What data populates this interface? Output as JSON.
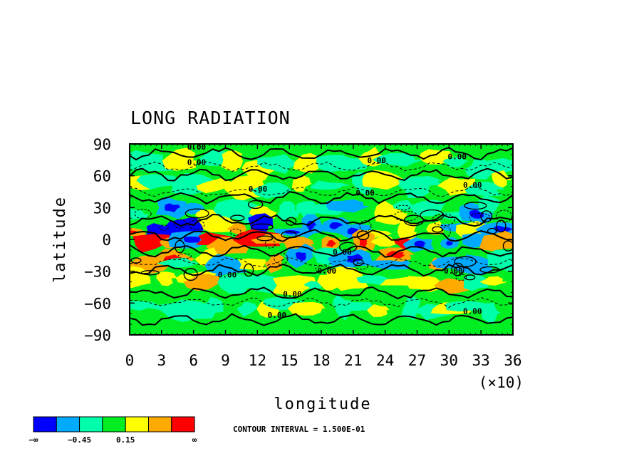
{
  "chart_data": {
    "type": "heatmap",
    "title": "LONG RADIATION",
    "xlabel": "longitude",
    "ylabel": "latitude",
    "x_multiplier": "(×10)",
    "xlim": [
      0,
      36
    ],
    "ylim": [
      -90,
      90
    ],
    "x_ticks": [
      "0",
      "3",
      "6",
      "9",
      "12",
      "15",
      "18",
      "21",
      "24",
      "27",
      "30",
      "33",
      "36"
    ],
    "y_ticks": [
      "90",
      "60",
      "30",
      "0",
      "−30",
      "−60",
      "−90"
    ],
    "contour_interval_text": "CONTOUR INTERVAL = 1.500E-01",
    "contour_level_labels": [
      "0.00",
      "0.00",
      "0.00",
      "0.00",
      "0.00",
      "0.00",
      "0.00",
      "0.00",
      "0.00",
      "0.00",
      "0.00",
      "0.00",
      "0.00",
      "0.00"
    ],
    "colorbar": {
      "colors": [
        "#0000ff",
        "#00aaff",
        "#00ffaa",
        "#00ee22",
        "#ffff00",
        "#ffaa00",
        "#ff0000"
      ],
      "labels": [
        "−∞",
        "−0.45",
        "0.15",
        "∞"
      ]
    },
    "field_colors": {
      "strong_negative": "#0000ff",
      "negative": "#00aaff",
      "weak_negative": "#00ffaa",
      "near_zero": "#00ee22",
      "weak_positive": "#ffff00",
      "positive": "#ffaa00",
      "strong_positive": "#ff0000"
    }
  }
}
